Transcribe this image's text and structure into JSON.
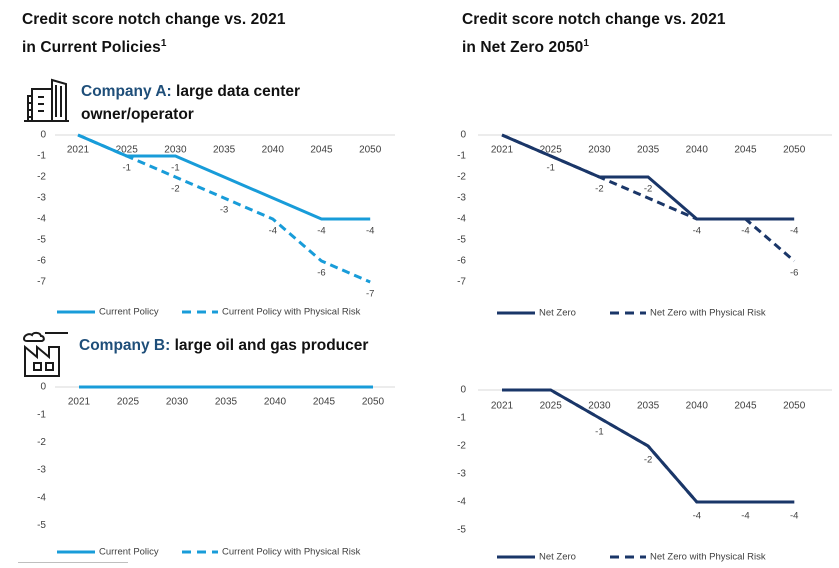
{
  "colors": {
    "light_blue": "#189CD9",
    "navy": "#1A3668",
    "tick_text": "#404040",
    "gridline": "#D9D9D9",
    "heading_blue": "#1E4E79"
  },
  "header_left": {
    "line1": "Credit score notch change vs. 2021",
    "line2": "in Current Policies",
    "footnote_marker": "1"
  },
  "header_right": {
    "line1": "Credit score notch change vs. 2021",
    "line2": "in Net Zero 2050",
    "footnote_marker": "1"
  },
  "company_a": {
    "name": "Company A:",
    "desc_line1": "large data center",
    "desc_line2": "owner/operator",
    "icon": "office-buildings-icon"
  },
  "company_b": {
    "name": "Company B:",
    "desc": "large oil and gas producer",
    "icon": "factory-icon"
  },
  "chart_data": [
    {
      "id": "company-a-current-policies",
      "type": "line",
      "title": "Credit score notch change vs. 2021 in Current Policies",
      "company": "Company A",
      "x": [
        2021,
        2025,
        2030,
        2035,
        2040,
        2045,
        2050
      ],
      "ylim": [
        -7,
        0
      ],
      "yticks": [
        0,
        -1,
        -2,
        -3,
        -4,
        -5,
        -6,
        -7
      ],
      "grid": "zero-line-only",
      "legend_position": "bottom",
      "color": "#189CD9",
      "series": [
        {
          "name": "Current Policy",
          "style": "solid",
          "values": [
            0,
            -1,
            -1,
            -2,
            -3,
            -4,
            -4
          ],
          "point_labels": [
            "",
            "-1",
            "-1",
            "",
            "",
            "-4",
            "-4"
          ]
        },
        {
          "name": "Current Policy with Physical Risk",
          "style": "dashed",
          "values": [
            0,
            -1,
            -2,
            -3,
            -4,
            -6,
            -7
          ],
          "point_labels": [
            "",
            "",
            "-2",
            "-3",
            "-4",
            "-6",
            "-7"
          ]
        }
      ]
    },
    {
      "id": "company-a-net-zero",
      "type": "line",
      "title": "Credit score notch change vs. 2021 in Net Zero 2050",
      "company": "Company A",
      "x": [
        2021,
        2025,
        2030,
        2035,
        2040,
        2045,
        2050
      ],
      "ylim": [
        -7,
        0
      ],
      "yticks": [
        0,
        -1,
        -2,
        -3,
        -4,
        -5,
        -6,
        -7
      ],
      "grid": "zero-line-only",
      "legend_position": "bottom",
      "color": "#1A3668",
      "series": [
        {
          "name": "Net Zero",
          "style": "solid",
          "values": [
            0,
            -1,
            -2,
            -2,
            -4,
            -4,
            -4
          ],
          "point_labels": [
            "",
            "-1",
            "-2",
            "-2",
            "-4",
            "-4",
            "-4"
          ]
        },
        {
          "name": "Net Zero with Physical Risk",
          "style": "dashed",
          "values": [
            0,
            -1,
            -2,
            -3,
            -4,
            -4,
            -6
          ],
          "point_labels": [
            "",
            "",
            "",
            "",
            "",
            "",
            "-6"
          ]
        }
      ]
    },
    {
      "id": "company-b-current-policies",
      "type": "line",
      "title": "Credit score notch change vs. 2021 in Current Policies",
      "company": "Company B",
      "x": [
        2021,
        2025,
        2030,
        2035,
        2040,
        2045,
        2050
      ],
      "ylim": [
        -5,
        0
      ],
      "yticks": [
        0,
        -1,
        -2,
        -3,
        -4,
        -5
      ],
      "grid": "zero-line-only",
      "legend_position": "bottom",
      "color": "#189CD9",
      "series": [
        {
          "name": "Current Policy",
          "style": "solid",
          "values": [
            0,
            0,
            0,
            0,
            0,
            0,
            0
          ],
          "point_labels": [
            "",
            "",
            "",
            "",
            "",
            "",
            ""
          ]
        },
        {
          "name": "Current Policy with Physical Risk",
          "style": "dashed",
          "values": [
            0,
            0,
            0,
            0,
            0,
            0,
            0
          ],
          "point_labels": [
            "",
            "",
            "",
            "",
            "",
            "",
            ""
          ]
        }
      ]
    },
    {
      "id": "company-b-net-zero",
      "type": "line",
      "title": "Credit score notch change vs. 2021 in Net Zero 2050",
      "company": "Company B",
      "x": [
        2021,
        2025,
        2030,
        2035,
        2040,
        2045,
        2050
      ],
      "ylim": [
        -5,
        0
      ],
      "yticks": [
        0,
        -1,
        -2,
        -3,
        -4,
        -5
      ],
      "grid": "zero-line-only",
      "legend_position": "bottom",
      "color": "#1A3668",
      "series": [
        {
          "name": "Net Zero",
          "style": "solid",
          "values": [
            0,
            0,
            -1,
            -2,
            -4,
            -4,
            -4
          ],
          "point_labels": [
            "",
            "",
            "-1",
            "-2",
            "-4",
            "-4",
            "-4"
          ]
        },
        {
          "name": "Net Zero with Physical Risk",
          "style": "dashed",
          "values": [
            0,
            0,
            -1,
            -2,
            -4,
            -4,
            -4
          ],
          "point_labels": [
            "",
            "",
            "",
            "",
            "",
            "",
            ""
          ]
        }
      ]
    }
  ]
}
